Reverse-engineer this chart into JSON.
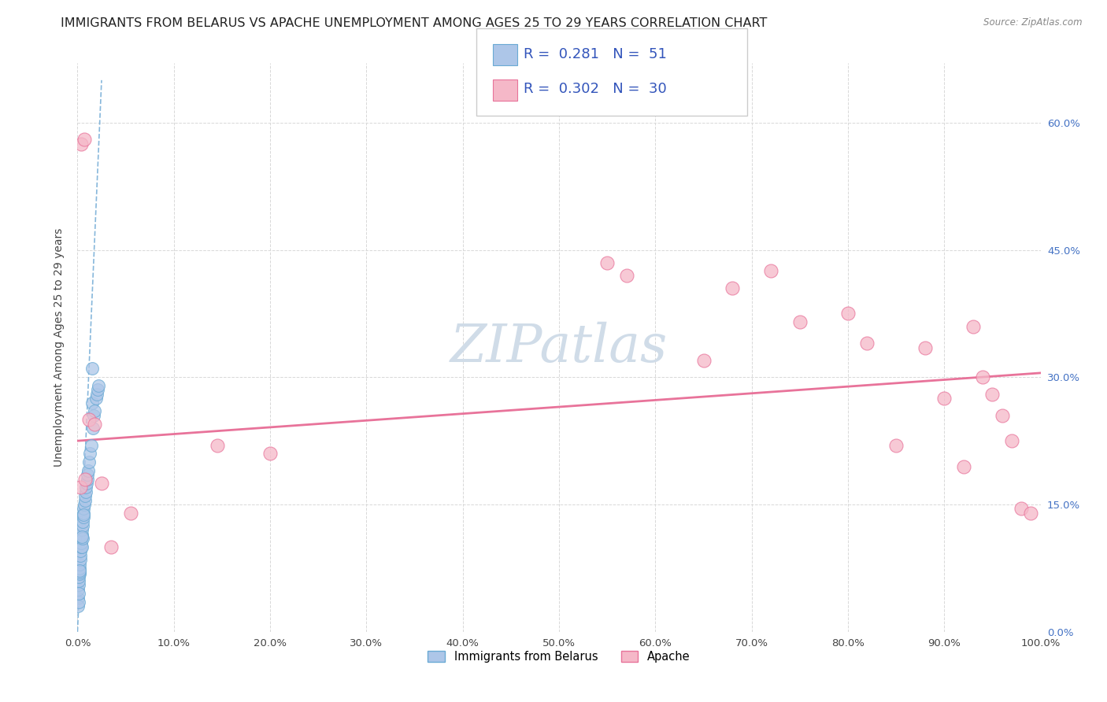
{
  "title": "IMMIGRANTS FROM BELARUS VS APACHE UNEMPLOYMENT AMONG AGES 25 TO 29 YEARS CORRELATION CHART",
  "source": "Source: ZipAtlas.com",
  "ylabel": "Unemployment Among Ages 25 to 29 years",
  "legend_label1": "Immigrants from Belarus",
  "legend_label2": "Apache",
  "R1": 0.281,
  "N1": 51,
  "R2": 0.302,
  "N2": 30,
  "xlim": [
    0,
    100
  ],
  "ylim": [
    0,
    67
  ],
  "xticks": [
    0,
    10,
    20,
    30,
    40,
    50,
    60,
    70,
    80,
    90,
    100
  ],
  "yticks": [
    0,
    15,
    30,
    45,
    60
  ],
  "color_blue": "#adc6e8",
  "color_blue_edge": "#6aaad4",
  "color_pink": "#f5b8c8",
  "color_pink_edge": "#e8739a",
  "color_trend_blue": "#7ab0d8",
  "color_trend_pink": "#e8739a",
  "background_color": "#ffffff",
  "grid_color": "#d8d8d8",
  "title_fontsize": 11.5,
  "axis_label_fontsize": 10,
  "tick_fontsize": 9.5,
  "right_tick_color": "#4472c4",
  "blue_scatter_x": [
    0.05,
    0.08,
    0.1,
    0.12,
    0.15,
    0.18,
    0.2,
    0.22,
    0.25,
    0.28,
    0.3,
    0.33,
    0.35,
    0.38,
    0.4,
    0.42,
    0.45,
    0.48,
    0.5,
    0.52,
    0.55,
    0.58,
    0.6,
    0.65,
    0.7,
    0.75,
    0.8,
    0.85,
    0.9,
    0.95,
    1.0,
    1.05,
    1.1,
    1.2,
    1.3,
    1.4,
    1.5,
    1.6,
    1.7,
    1.8,
    1.9,
    2.0,
    2.1,
    2.2,
    0.06,
    0.09,
    0.14,
    0.24,
    0.46,
    0.62,
    1.55
  ],
  "blue_scatter_y": [
    4.0,
    5.0,
    5.5,
    6.0,
    6.5,
    6.8,
    7.0,
    7.5,
    8.0,
    8.5,
    9.0,
    9.5,
    10.0,
    10.5,
    11.0,
    10.0,
    11.5,
    12.0,
    12.5,
    11.0,
    13.0,
    13.5,
    14.0,
    14.5,
    15.0,
    15.5,
    16.0,
    16.5,
    17.0,
    17.5,
    18.0,
    18.5,
    19.0,
    20.0,
    21.0,
    22.0,
    27.0,
    24.0,
    25.5,
    26.0,
    27.5,
    28.0,
    28.5,
    29.0,
    3.0,
    3.5,
    4.5,
    7.2,
    11.2,
    13.8,
    31.0
  ],
  "blue_trend_x": [
    0.0,
    2.5
  ],
  "blue_trend_y": [
    0.0,
    65.0
  ],
  "pink_scatter_x": [
    0.4,
    0.7,
    1.2,
    1.8,
    3.5,
    5.5,
    14.5,
    20.0,
    55.0,
    57.0,
    65.0,
    68.0,
    72.0,
    75.0,
    80.0,
    82.0,
    85.0,
    88.0,
    90.0,
    92.0,
    93.0,
    94.0,
    95.0,
    96.0,
    97.0,
    98.0,
    99.0,
    0.3,
    0.8,
    2.5
  ],
  "pink_scatter_y": [
    57.5,
    58.0,
    25.0,
    24.5,
    10.0,
    14.0,
    22.0,
    21.0,
    43.5,
    42.0,
    32.0,
    40.5,
    42.5,
    36.5,
    37.5,
    34.0,
    22.0,
    33.5,
    27.5,
    19.5,
    36.0,
    30.0,
    28.0,
    25.5,
    22.5,
    14.5,
    14.0,
    17.0,
    18.0,
    17.5
  ],
  "pink_trend_x": [
    0.0,
    100.0
  ],
  "pink_trend_y": [
    22.5,
    30.5
  ],
  "watermark": "ZIPatlas",
  "watermark_color": "#d0dce8",
  "legend_R_eq": "R = ",
  "legend_N_eq": "N = "
}
